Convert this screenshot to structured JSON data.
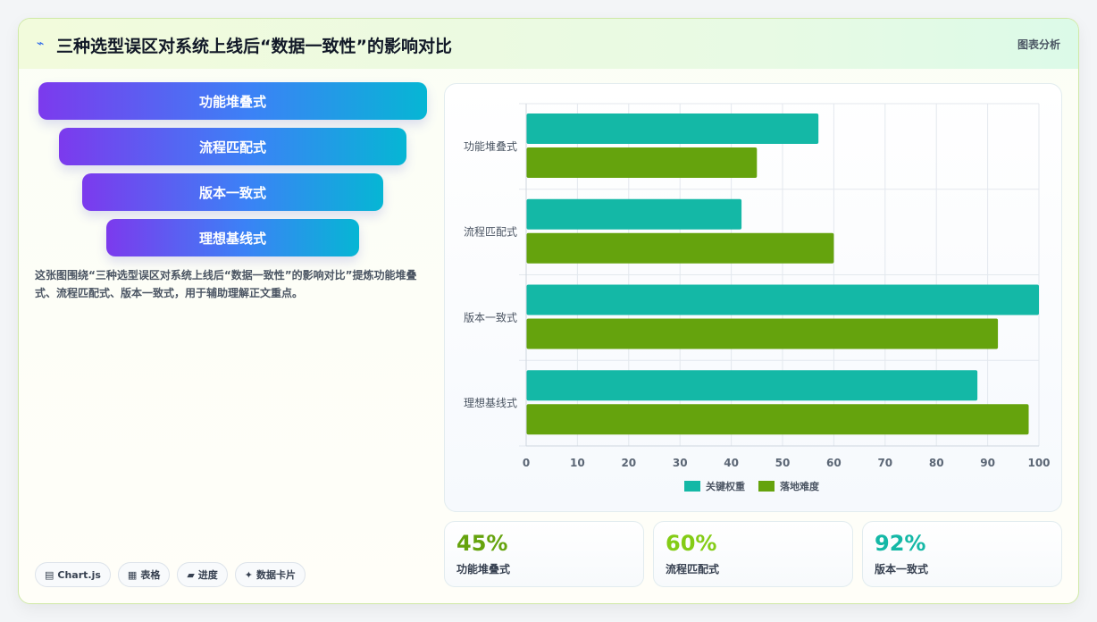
{
  "header": {
    "icon": "⌁",
    "title": "三种选型误区对系统上线后“数据一致性”的影响对比",
    "tag": "图表分析"
  },
  "funnel": [
    "功能堆叠式",
    "流程匹配式",
    "版本一致式",
    "理想基线式"
  ],
  "description": "这张图围绕“三种选型误区对系统上线后“数据一致性”的影响对比”提炼功能堆叠式、流程匹配式、版本一致式，用于辅助理解正文重点。",
  "tags": [
    {
      "icon": "▤",
      "label": "Chart.js"
    },
    {
      "icon": "▦",
      "label": "表格"
    },
    {
      "icon": "▰",
      "label": "进度"
    },
    {
      "icon": "✦",
      "label": "数据卡片"
    }
  ],
  "chart_data": {
    "type": "bar",
    "orientation": "horizontal",
    "categories": [
      "功能堆叠式",
      "流程匹配式",
      "版本一致式",
      "理想基线式"
    ],
    "series": [
      {
        "name": "关键权重",
        "values": [
          57,
          42,
          100,
          88
        ],
        "color": "#14b8a6"
      },
      {
        "name": "落地难度",
        "values": [
          45,
          60,
          92,
          98
        ],
        "color": "#65a30d"
      }
    ],
    "xlim": [
      0,
      100
    ],
    "xticks": [
      0,
      10,
      20,
      30,
      40,
      50,
      60,
      70,
      80,
      90,
      100
    ],
    "grid": true,
    "legend": "bottom"
  },
  "stats": [
    {
      "value": "45%",
      "label": "功能堆叠式",
      "color": "#65a30d"
    },
    {
      "value": "60%",
      "label": "流程匹配式",
      "color": "#84cc16"
    },
    {
      "value": "92%",
      "label": "版本一致式",
      "color": "#14b8a6"
    }
  ]
}
